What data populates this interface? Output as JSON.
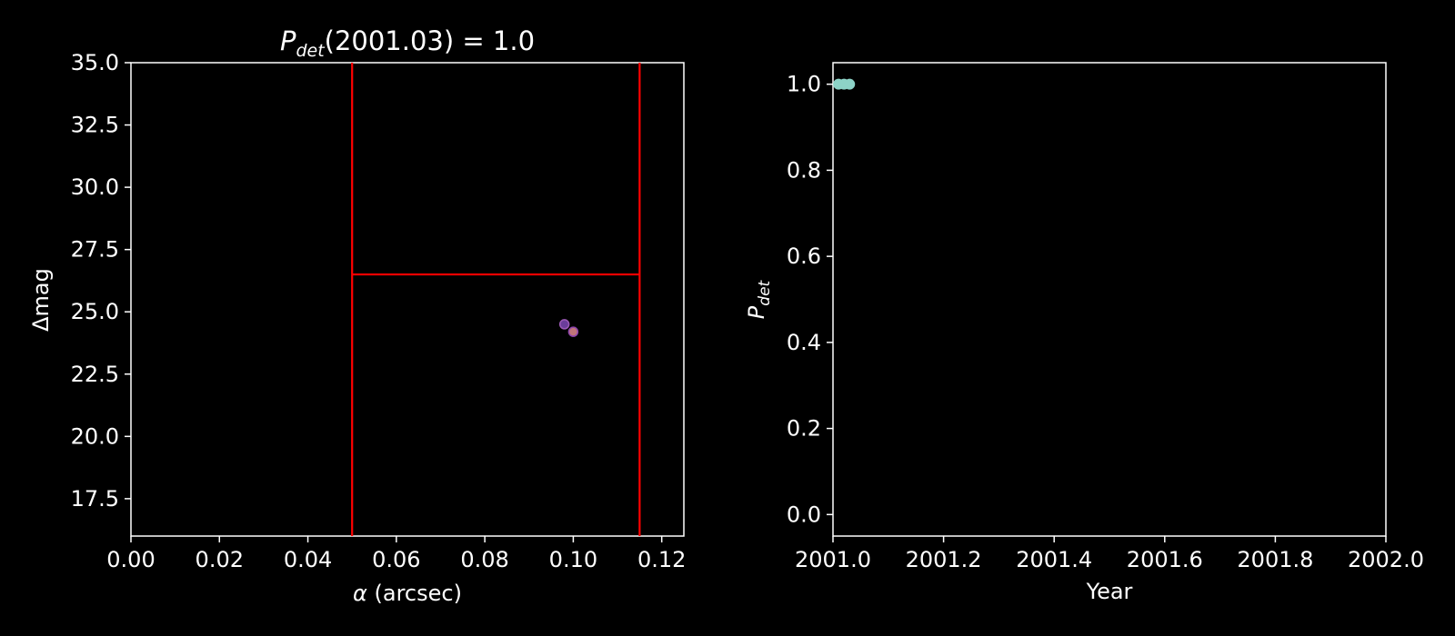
{
  "theme": {
    "background": "#000000",
    "axes_color": "#ffffff",
    "text_color": "#ffffff"
  },
  "chart_data": [
    {
      "type": "scatter",
      "title": {
        "main": "P",
        "sub": "det",
        "rest": "(2001.03) = 1.0"
      },
      "xlabel": {
        "symbol": "α",
        "rest": " (arcsec)"
      },
      "ylabel": "Δmag",
      "xlim": [
        0.0,
        0.125
      ],
      "ylim": [
        16.0,
        35.0
      ],
      "xticks": [
        0.0,
        0.02,
        0.04,
        0.06,
        0.08,
        0.1,
        0.12
      ],
      "xtick_labels": [
        "0.00",
        "0.02",
        "0.04",
        "0.06",
        "0.08",
        "0.10",
        "0.12"
      ],
      "yticks": [
        17.5,
        20.0,
        22.5,
        25.0,
        27.5,
        30.0,
        32.5,
        35.0
      ],
      "ytick_labels": [
        "17.5",
        "20.0",
        "22.5",
        "25.0",
        "27.5",
        "30.0",
        "32.5",
        "35.0"
      ],
      "grid": false,
      "region_lines": {
        "color": "#ff0000",
        "vlines": [
          0.05,
          0.115
        ],
        "hline": {
          "y": 26.5,
          "x_from": 0.05,
          "x_to": 0.115
        }
      },
      "points": [
        {
          "x": 0.098,
          "y": 24.5,
          "color": "#6a3d9a",
          "edge": "#9b59b6"
        },
        {
          "x": 0.1,
          "y": 24.2,
          "color": "#c0757a",
          "edge": "#8e44ad"
        }
      ]
    },
    {
      "type": "scatter",
      "xlabel": "Year",
      "ylabel": {
        "main": "P",
        "sub": "det"
      },
      "xlim": [
        2001.0,
        2002.0
      ],
      "ylim": [
        -0.05,
        1.05
      ],
      "xticks": [
        2001.0,
        2001.2,
        2001.4,
        2001.6,
        2001.8,
        2002.0
      ],
      "xtick_labels": [
        "2001.0",
        "2001.2",
        "2001.4",
        "2001.6",
        "2001.8",
        "2002.0"
      ],
      "yticks": [
        0.0,
        0.2,
        0.4,
        0.6,
        0.8,
        1.0
      ],
      "ytick_labels": [
        "0.0",
        "0.2",
        "0.4",
        "0.6",
        "0.8",
        "1.0"
      ],
      "grid": false,
      "series_color": "#8dd3c7",
      "points": [
        {
          "x": 2001.01,
          "y": 1.0
        },
        {
          "x": 2001.02,
          "y": 1.0
        },
        {
          "x": 2001.03,
          "y": 1.0
        }
      ]
    }
  ]
}
